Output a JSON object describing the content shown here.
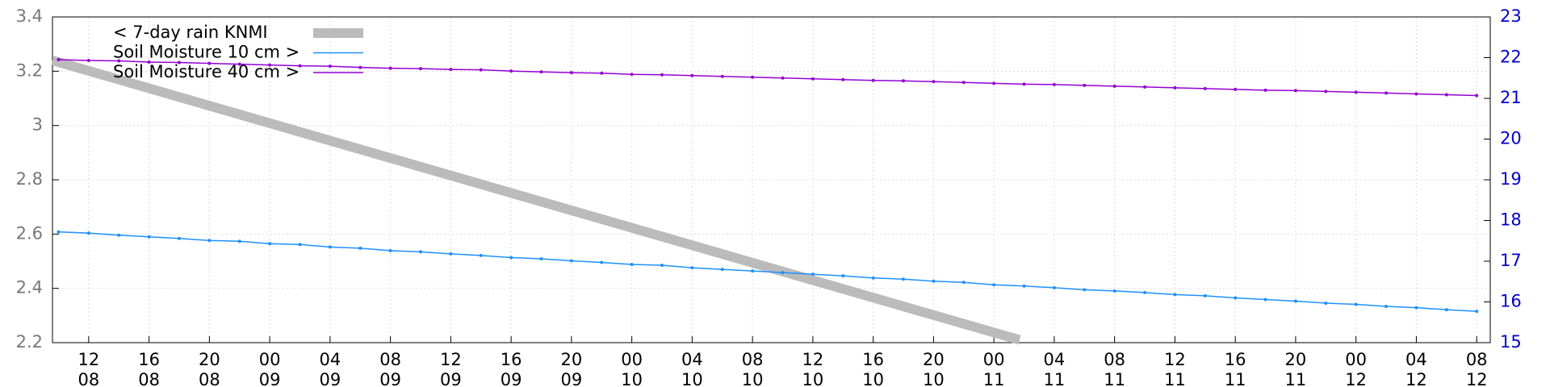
{
  "chart_data": {
    "type": "line",
    "series": [
      {
        "name": "< 7-day rain KNMI",
        "color": "#bbbbbb",
        "axis": "y",
        "width": 12,
        "x": [
          9.6,
          73.7
        ],
        "values": [
          3.24,
          2.21
        ]
      },
      {
        "name": "Soil Moisture 10 cm >",
        "color": "#1e90ff",
        "axis": "y2",
        "width": 1.5,
        "x": [
          10,
          12,
          14,
          16,
          18,
          20,
          22,
          24,
          26,
          28,
          30,
          32,
          34,
          36,
          38,
          40,
          42,
          44,
          46,
          48,
          50,
          52,
          54,
          56,
          58,
          60,
          62,
          64,
          66,
          68,
          70,
          72,
          74,
          76,
          78,
          80,
          82,
          84,
          86,
          88,
          90,
          92,
          94,
          96,
          98,
          100,
          102,
          104
        ],
        "values": [
          17.72,
          17.69,
          17.64,
          17.6,
          17.56,
          17.51,
          17.49,
          17.43,
          17.41,
          17.35,
          17.32,
          17.26,
          17.23,
          17.18,
          17.14,
          17.09,
          17.06,
          17.01,
          16.97,
          16.92,
          16.9,
          16.84,
          16.8,
          16.76,
          16.72,
          16.68,
          16.64,
          16.59,
          16.56,
          16.51,
          16.48,
          16.42,
          16.39,
          16.35,
          16.3,
          16.27,
          16.23,
          16.18,
          16.15,
          16.1,
          16.06,
          16.02,
          15.97,
          15.94,
          15.89,
          15.86,
          15.81,
          15.77
        ]
      },
      {
        "name": "Soil Moisture 40 cm >",
        "color": "#9400d3",
        "axis": "y2",
        "width": 1.5,
        "x": [
          10,
          12,
          14,
          16,
          18,
          20,
          22,
          24,
          26,
          28,
          30,
          32,
          34,
          36,
          38,
          40,
          42,
          44,
          46,
          48,
          50,
          52,
          54,
          56,
          58,
          60,
          62,
          64,
          66,
          68,
          70,
          72,
          74,
          76,
          78,
          80,
          82,
          84,
          86,
          88,
          90,
          92,
          94,
          96,
          98,
          100,
          102,
          104
        ],
        "values": [
          21.95,
          21.93,
          21.92,
          21.89,
          21.88,
          21.86,
          21.84,
          21.82,
          21.8,
          21.79,
          21.76,
          21.74,
          21.73,
          21.71,
          21.7,
          21.67,
          21.65,
          21.63,
          21.62,
          21.59,
          21.58,
          21.56,
          21.54,
          21.52,
          21.5,
          21.48,
          21.46,
          21.44,
          21.43,
          21.41,
          21.39,
          21.37,
          21.35,
          21.34,
          21.32,
          21.3,
          21.28,
          21.26,
          21.24,
          21.22,
          21.2,
          21.19,
          21.17,
          21.15,
          21.13,
          21.11,
          21.09,
          21.07
        ]
      }
    ],
    "xlim": [
      9.6,
      104.9
    ],
    "xticks": [
      {
        "value": 12,
        "label": [
          "12",
          "08"
        ]
      },
      {
        "value": 16,
        "label": [
          "16",
          "08"
        ]
      },
      {
        "value": 20,
        "label": [
          "20",
          "08"
        ]
      },
      {
        "value": 24,
        "label": [
          "00",
          "09"
        ]
      },
      {
        "value": 28,
        "label": [
          "04",
          "09"
        ]
      },
      {
        "value": 32,
        "label": [
          "08",
          "09"
        ]
      },
      {
        "value": 36,
        "label": [
          "12",
          "09"
        ]
      },
      {
        "value": 40,
        "label": [
          "16",
          "09"
        ]
      },
      {
        "value": 44,
        "label": [
          "20",
          "09"
        ]
      },
      {
        "value": 48,
        "label": [
          "00",
          "10"
        ]
      },
      {
        "value": 52,
        "label": [
          "04",
          "10"
        ]
      },
      {
        "value": 56,
        "label": [
          "08",
          "10"
        ]
      },
      {
        "value": 60,
        "label": [
          "12",
          "10"
        ]
      },
      {
        "value": 64,
        "label": [
          "16",
          "10"
        ]
      },
      {
        "value": 68,
        "label": [
          "20",
          "10"
        ]
      },
      {
        "value": 72,
        "label": [
          "00",
          "11"
        ]
      },
      {
        "value": 76,
        "label": [
          "04",
          "11"
        ]
      },
      {
        "value": 80,
        "label": [
          "08",
          "11"
        ]
      },
      {
        "value": 84,
        "label": [
          "12",
          "11"
        ]
      },
      {
        "value": 88,
        "label": [
          "16",
          "11"
        ]
      },
      {
        "value": 92,
        "label": [
          "20",
          "11"
        ]
      },
      {
        "value": 96,
        "label": [
          "00",
          "12"
        ]
      },
      {
        "value": 100,
        "label": [
          "04",
          "12"
        ]
      },
      {
        "value": 104,
        "label": [
          "08",
          "12"
        ]
      }
    ],
    "ylim": [
      2.2,
      3.4
    ],
    "yticks": [
      2.2,
      2.4,
      2.6,
      2.8,
      3,
      3.2,
      3.4
    ],
    "y2lim": [
      15,
      23
    ],
    "y2ticks": [
      15,
      16,
      17,
      18,
      19,
      20,
      21,
      22,
      23
    ],
    "grid": true,
    "legend": "top-left"
  }
}
